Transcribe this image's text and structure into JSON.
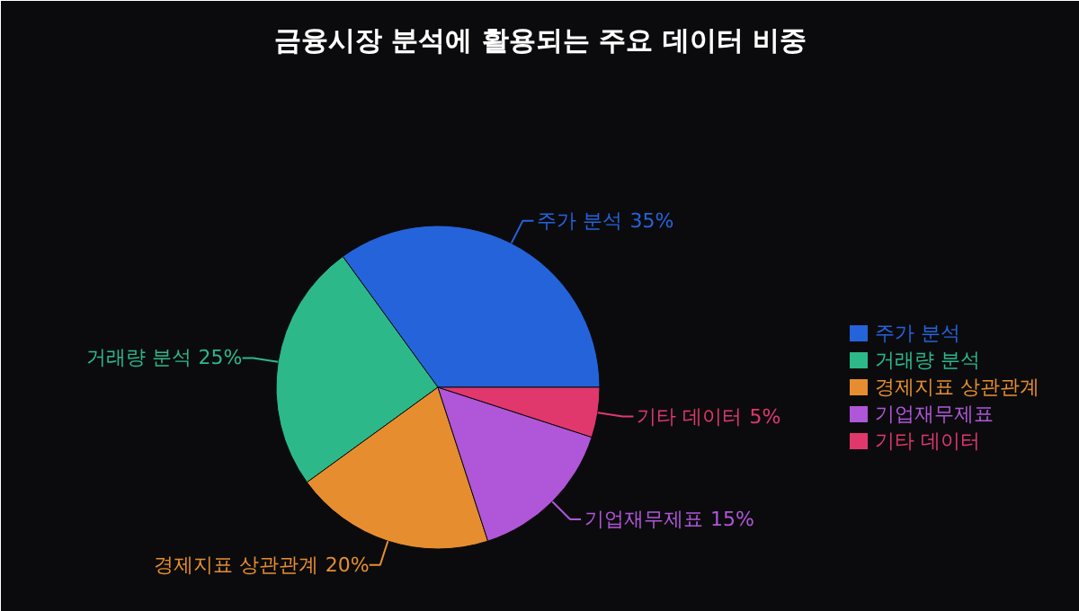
{
  "chart_data": {
    "type": "pie",
    "title": "금융시장 분석에 활용되는 주요 데이터 비중",
    "categories": [
      "주가 분석",
      "거래량 분석",
      "경제지표 상관관계",
      "기업재무제표",
      "기타 데이터"
    ],
    "values": [
      35,
      25,
      20,
      15,
      5
    ],
    "colors": [
      "#2563db",
      "#2db88a",
      "#e68e2f",
      "#b056d8",
      "#e0386d"
    ],
    "value_labels": [
      "35%",
      "25%",
      "20%",
      "15%",
      "5%"
    ],
    "legend": "right"
  }
}
